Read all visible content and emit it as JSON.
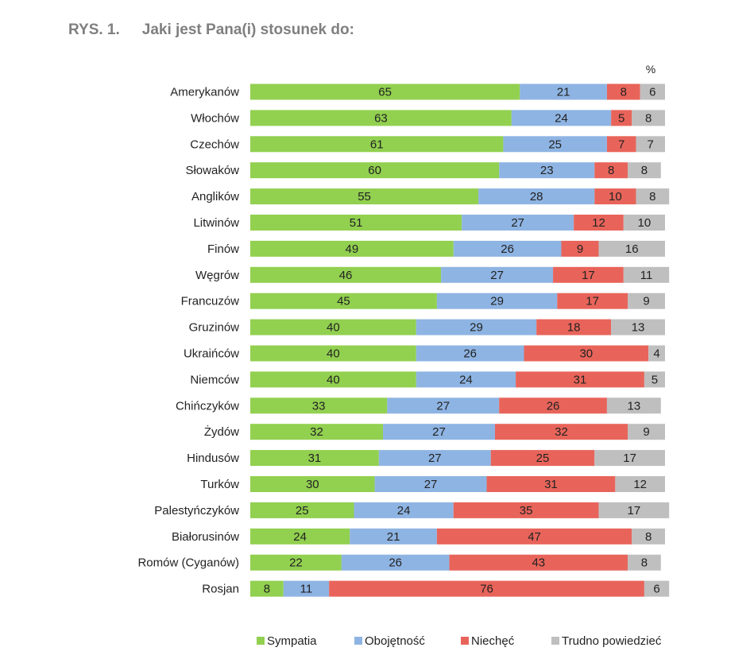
{
  "figure": {
    "label": "RYS. 1.",
    "title": "Jaki jest Pana(i) stosunek do:",
    "unit": "%"
  },
  "colors": {
    "sympatia": "#92d050",
    "obojetnosc": "#8eb4e3",
    "niechec": "#e8645a",
    "trudno": "#bfbfbf"
  },
  "chart_data": {
    "type": "bar",
    "orientation": "horizontal",
    "stacked": true,
    "title": "Jaki jest Pana(i) stosunek do:",
    "unit": "%",
    "xlim": [
      0,
      100
    ],
    "legend_position": "bottom",
    "categories": [
      "Amerykanów",
      "Włochów",
      "Czechów",
      "Słowaków",
      "Anglików",
      "Litwinów",
      "Finów",
      "Węgrów",
      "Francuzów",
      "Gruzinów",
      "Ukraińców",
      "Niemców",
      "Chińczyków",
      "Żydów",
      "Hindusów",
      "Turków",
      "Palestyńczyków",
      "Białorusinów",
      "Romów (Cyganów)",
      "Rosjan"
    ],
    "series": [
      {
        "name": "Sympatia",
        "color_key": "sympatia",
        "values": [
          65,
          63,
          61,
          60,
          55,
          51,
          49,
          46,
          45,
          40,
          40,
          40,
          33,
          32,
          31,
          30,
          25,
          24,
          22,
          8
        ]
      },
      {
        "name": "Obojętność",
        "color_key": "obojetnosc",
        "values": [
          21,
          24,
          25,
          23,
          28,
          27,
          26,
          27,
          29,
          29,
          26,
          24,
          27,
          27,
          27,
          27,
          24,
          21,
          26,
          11
        ]
      },
      {
        "name": "Niechęć",
        "color_key": "niechec",
        "values": [
          8,
          5,
          7,
          8,
          10,
          12,
          9,
          17,
          17,
          18,
          30,
          31,
          26,
          32,
          25,
          31,
          35,
          47,
          43,
          76
        ]
      },
      {
        "name": "Trudno powiedzieć",
        "color_key": "trudno",
        "values": [
          6,
          8,
          7,
          8,
          8,
          10,
          16,
          11,
          9,
          13,
          4,
          5,
          13,
          9,
          17,
          12,
          17,
          8,
          8,
          6
        ]
      }
    ]
  }
}
